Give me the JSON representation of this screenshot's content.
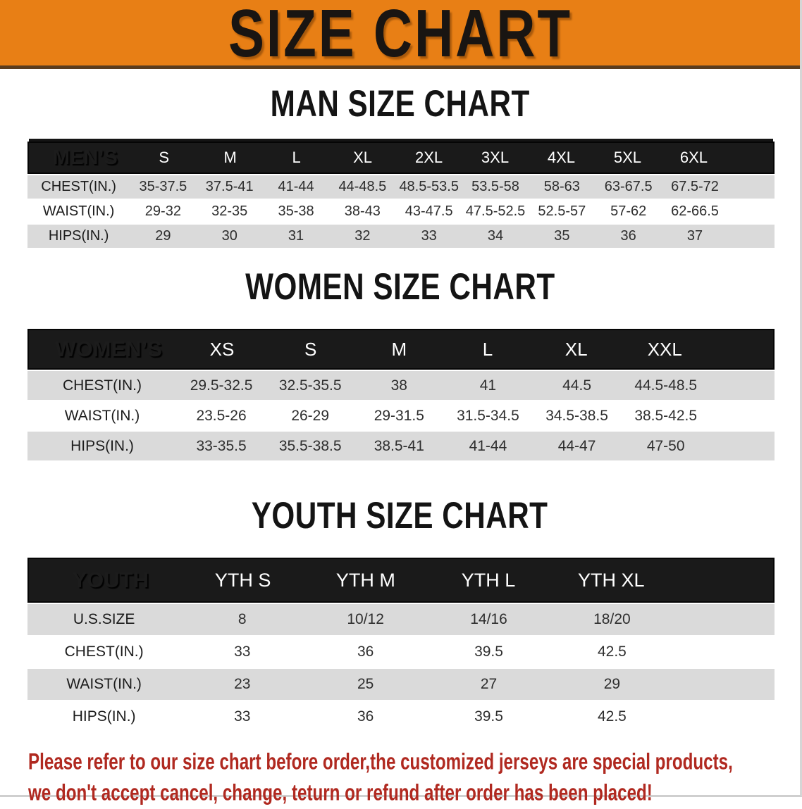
{
  "banner": {
    "title": "SIZE CHART",
    "bg_color": "#e87f15"
  },
  "chart_data": [
    {
      "type": "table",
      "title": "MAN SIZE CHART",
      "header_label": "MEN’S",
      "columns": [
        "S",
        "M",
        "L",
        "XL",
        "2XL",
        "3XL",
        "4XL",
        "5XL",
        "6XL"
      ],
      "rows": [
        {
          "label": "CHEST(IN.)",
          "values": [
            "35-37.5",
            "37.5-41",
            "41-44",
            "44-48.5",
            "48.5-53.5",
            "53.5-58",
            "58-63",
            "63-67.5",
            "67.5-72"
          ]
        },
        {
          "label": "WAIST(IN.)",
          "values": [
            "29-32",
            "32-35",
            "35-38",
            "38-43",
            "43-47.5",
            "47.5-52.5",
            "52.5-57",
            "57-62",
            "62-66.5"
          ]
        },
        {
          "label": "HIPS(IN.)",
          "values": [
            "29",
            "30",
            "31",
            "32",
            "33",
            "34",
            "35",
            "36",
            "37"
          ]
        }
      ]
    },
    {
      "type": "table",
      "title": "WOMEN SIZE CHART",
      "header_label": "WOMEN’S",
      "columns": [
        "XS",
        "S",
        "M",
        "L",
        "XL",
        "XXL"
      ],
      "rows": [
        {
          "label": "CHEST(IN.)",
          "values": [
            "29.5-32.5",
            "32.5-35.5",
            "38",
            "41",
            "44.5",
            "44.5-48.5"
          ]
        },
        {
          "label": "WAIST(IN.)",
          "values": [
            "23.5-26",
            "26-29",
            "29-31.5",
            "31.5-34.5",
            "34.5-38.5",
            "38.5-42.5"
          ]
        },
        {
          "label": "HIPS(IN.)",
          "values": [
            "33-35.5",
            "35.5-38.5",
            "38.5-41",
            "41-44",
            "44-47",
            "47-50"
          ]
        }
      ]
    },
    {
      "type": "table",
      "title": "YOUTH SIZE CHART",
      "header_label": "YOUTH",
      "columns": [
        "YTH S",
        "YTH M",
        "YTH L",
        "YTH XL"
      ],
      "rows": [
        {
          "label": "U.S.SIZE",
          "values": [
            "8",
            "10/12",
            "14/16",
            "18/20"
          ]
        },
        {
          "label": "CHEST(IN.)",
          "values": [
            "33",
            "36",
            "39.5",
            "42.5"
          ]
        },
        {
          "label": "WAIST(IN.)",
          "values": [
            "23",
            "25",
            "27",
            "29"
          ]
        },
        {
          "label": "HIPS(IN.)",
          "values": [
            "33",
            "36",
            "39.5",
            "42.5"
          ]
        }
      ]
    }
  ],
  "footer": {
    "line1": "Please refer to our size chart before order,the customized jerseys are special products,",
    "line2": "we don't accept cancel, change, teturn or refund after order has been placed!",
    "text_color": "#b02920"
  }
}
